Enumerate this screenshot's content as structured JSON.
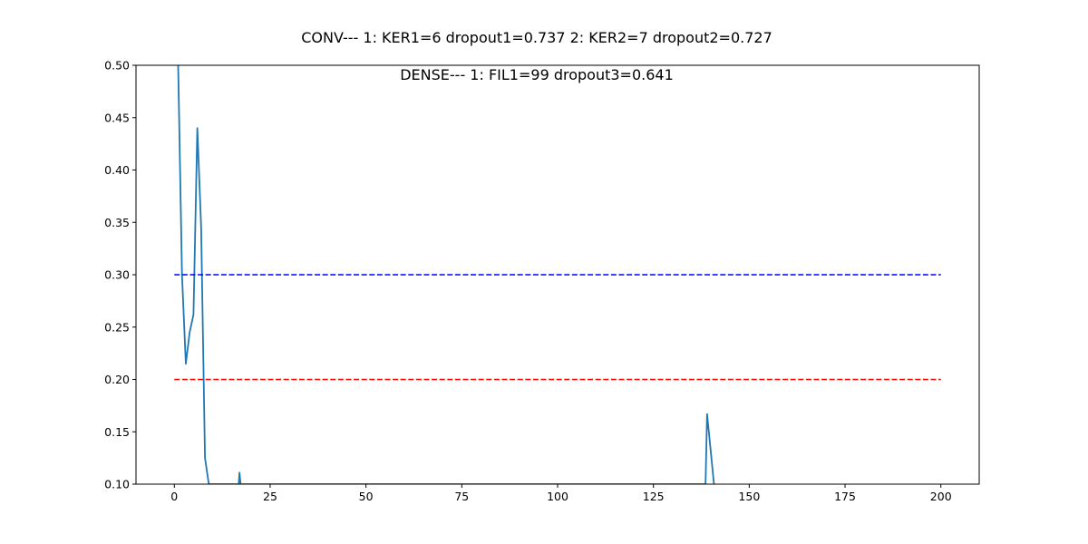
{
  "chart_data": {
    "type": "line",
    "title": "CONV--- 1: KER1=6   dropout1=0.737   2: KER2=7   dropout2=0.727",
    "subtitle": "DENSE--- 1: FIL1=99   dropout3=0.641",
    "xlabel": "",
    "ylabel": "",
    "xlim": [
      -10,
      210
    ],
    "ylim": [
      0.1,
      0.5
    ],
    "xticks": [
      0,
      25,
      50,
      75,
      100,
      125,
      150,
      175,
      200
    ],
    "yticks": [
      0.1,
      0.15,
      0.2,
      0.25,
      0.3,
      0.35,
      0.4,
      0.45,
      0.5
    ],
    "xtick_labels": [
      "0",
      "25",
      "50",
      "75",
      "100",
      "125",
      "150",
      "175",
      "200"
    ],
    "ytick_labels": [
      "0.10",
      "0.15",
      "0.20",
      "0.25",
      "0.30",
      "0.35",
      "0.40",
      "0.45",
      "0.50"
    ],
    "grid": false,
    "legend": false,
    "series": [
      {
        "color": "#1f77b4",
        "style": "solid",
        "x": [
          1,
          2,
          3,
          4,
          5,
          6,
          7,
          8,
          9,
          16.8,
          17,
          17.3,
          138.6,
          139,
          140,
          140.8
        ],
        "y": [
          0.5,
          0.3,
          0.215,
          0.245,
          0.262,
          0.44,
          0.345,
          0.125,
          0.1,
          0.1,
          0.111,
          0.1,
          0.1,
          0.167,
          0.13,
          0.1
        ]
      },
      {
        "color": "#0000ff",
        "style": "dashed",
        "x": [
          0,
          200
        ],
        "y": [
          0.3,
          0.3
        ]
      },
      {
        "color": "#ff0000",
        "style": "dashed",
        "x": [
          0,
          200
        ],
        "y": [
          0.2,
          0.2
        ]
      }
    ]
  }
}
